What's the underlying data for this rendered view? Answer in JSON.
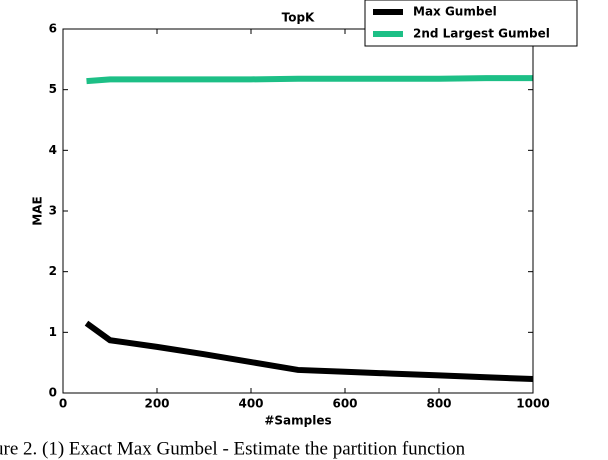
{
  "chart_data": {
    "type": "line",
    "title": "TopK",
    "x_label": "#Samples",
    "y_label": "MAE",
    "x": [
      50,
      100,
      200,
      300,
      400,
      500,
      600,
      700,
      800,
      900,
      1000
    ],
    "series": [
      {
        "name": "Max Gumbel",
        "color": "#000000",
        "values": [
          1.15,
          0.87,
          0.76,
          0.64,
          0.51,
          0.38,
          0.35,
          0.32,
          0.29,
          0.26,
          0.23
        ]
      },
      {
        "name": "2nd Largest Gumbel",
        "color": "#1dbf86",
        "values": [
          5.14,
          5.17,
          5.17,
          5.17,
          5.17,
          5.18,
          5.18,
          5.18,
          5.18,
          5.19,
          5.19
        ]
      }
    ],
    "xlim": [
      0,
      1000
    ],
    "xticks": [
      0,
      200,
      400,
      600,
      800,
      1000
    ],
    "ylim": [
      0,
      6
    ],
    "yticks": [
      0,
      1,
      2,
      3,
      4,
      5,
      6
    ],
    "legend": "upper right",
    "caption": "ure 2.  (1) Exact Max Gumbel - Estimate the partition function"
  }
}
